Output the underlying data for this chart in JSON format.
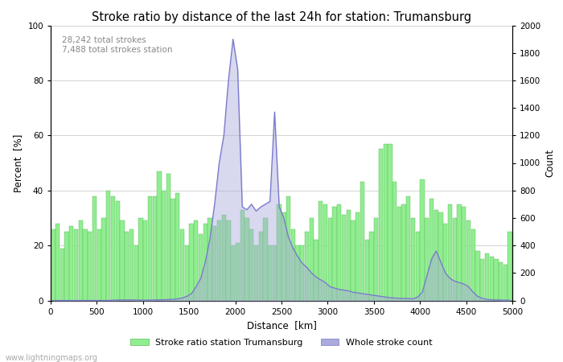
{
  "title": "Stroke ratio by distance of the last 24h for station: Trumansburg",
  "xlabel": "Distance  [km]",
  "ylabel_left": "Percent  [%]",
  "ylabel_right": "Count",
  "annotation_line1": "28,242 total strokes",
  "annotation_line2": "7,488 total strokes station",
  "legend_label_green": "Stroke ratio station Trumansburg",
  "legend_label_blue": "Whole stroke count",
  "watermark": "www.lightningmaps.org",
  "xlim": [
    0,
    5000
  ],
  "ylim_left": [
    0,
    100
  ],
  "ylim_right": [
    0,
    2000
  ],
  "xticks": [
    0,
    500,
    1000,
    1500,
    2000,
    2500,
    3000,
    3500,
    4000,
    4500,
    5000
  ],
  "yticks_left": [
    0,
    20,
    40,
    60,
    80,
    100
  ],
  "yticks_right": [
    0,
    200,
    400,
    600,
    800,
    1000,
    1200,
    1400,
    1600,
    1800,
    2000
  ],
  "bar_color": "#90ee90",
  "bar_edge_color": "#5db85d",
  "line_color": "#7777cc",
  "line_fill_color": "#aaaadd",
  "background_color": "#ffffff",
  "grid_color": "#cccccc",
  "title_fontsize": 10.5,
  "label_fontsize": 8.5,
  "tick_fontsize": 7.5,
  "annotation_fontsize": 7.5,
  "bin_width": 50,
  "green_bars": [
    26,
    28,
    19,
    25,
    27,
    26,
    29,
    26,
    25,
    38,
    26,
    30,
    40,
    38,
    36,
    29,
    25,
    26,
    20,
    30,
    29,
    38,
    38,
    47,
    40,
    46,
    37,
    39,
    26,
    20,
    28,
    29,
    24,
    28,
    30,
    27,
    29,
    31,
    29,
    20,
    21,
    33,
    30,
    26,
    20,
    25,
    30,
    20,
    20,
    35,
    32,
    38,
    26,
    20,
    20,
    25,
    30,
    22,
    36,
    35,
    30,
    34,
    35,
    31,
    33,
    29,
    32,
    43,
    22,
    25,
    30,
    55,
    57,
    57,
    43,
    34,
    35,
    38,
    30,
    25,
    44,
    30,
    37,
    33,
    32,
    28,
    35,
    30,
    35,
    34,
    29,
    26,
    18,
    15,
    17,
    16,
    15,
    14,
    13,
    25
  ],
  "blue_line": [
    0,
    0,
    0,
    0,
    0,
    0,
    0,
    0,
    0,
    0,
    0,
    0,
    0,
    2,
    3,
    4,
    4,
    4,
    3,
    3,
    2,
    3,
    4,
    5,
    5,
    7,
    8,
    12,
    18,
    30,
    50,
    100,
    160,
    280,
    450,
    700,
    1000,
    1200,
    1600,
    1900,
    1680,
    680,
    660,
    700,
    650,
    680,
    700,
    720,
    1370,
    680,
    600,
    460,
    380,
    320,
    270,
    240,
    200,
    170,
    150,
    130,
    100,
    90,
    80,
    75,
    70,
    60,
    55,
    50,
    45,
    40,
    35,
    30,
    25,
    20,
    18,
    16,
    15,
    14,
    13,
    25,
    60,
    180,
    300,
    360,
    280,
    200,
    160,
    140,
    130,
    120,
    100,
    60,
    30,
    15,
    8,
    5,
    4,
    3,
    2,
    2,
    1,
    0
  ]
}
